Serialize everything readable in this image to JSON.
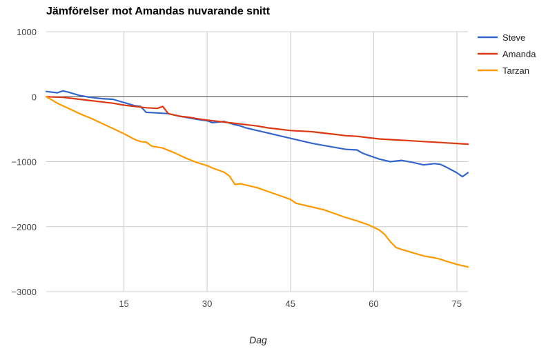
{
  "chart_data": {
    "type": "line",
    "title": "Jämförelser mot Amandas nuvarande snitt",
    "xlabel": "Dag",
    "ylabel": "",
    "xlim": [
      1,
      77
    ],
    "ylim": [
      -3000,
      1000
    ],
    "xticks": [
      15,
      30,
      45,
      60,
      75
    ],
    "yticks": [
      1000,
      0,
      -1000,
      -2000,
      -3000
    ],
    "ytick_labels": [
      "1000",
      "0",
      "−1000",
      "−2000",
      "−3000"
    ],
    "grid": true,
    "legend_position": "right",
    "series": [
      {
        "name": "Steve",
        "color": "#3366cc",
        "x": [
          1,
          3,
          4,
          5,
          7,
          9,
          11,
          13,
          15,
          17,
          18,
          19,
          21,
          23,
          25,
          27,
          29,
          30,
          31,
          33,
          35,
          36,
          37,
          39,
          41,
          43,
          45,
          47,
          49,
          51,
          53,
          55,
          57,
          58,
          59,
          61,
          63,
          64,
          65,
          67,
          69,
          71,
          72,
          73,
          75,
          76,
          77
        ],
        "values": [
          80,
          60,
          90,
          70,
          20,
          -10,
          -30,
          -40,
          -90,
          -140,
          -150,
          -240,
          -250,
          -260,
          -300,
          -330,
          -360,
          -370,
          -400,
          -380,
          -430,
          -450,
          -480,
          -520,
          -560,
          -600,
          -640,
          -680,
          -720,
          -750,
          -780,
          -810,
          -820,
          -870,
          -900,
          -960,
          -1000,
          -990,
          -980,
          -1010,
          -1050,
          -1030,
          -1040,
          -1080,
          -1170,
          -1230,
          -1170
        ]
      },
      {
        "name": "Amanda",
        "color": "#dc3912",
        "x": [
          1,
          4,
          5,
          7,
          9,
          11,
          13,
          15,
          17,
          19,
          21,
          22,
          23,
          25,
          27,
          29,
          30,
          33,
          35,
          37,
          39,
          41,
          43,
          45,
          47,
          49,
          51,
          53,
          55,
          57,
          59,
          61,
          63,
          65,
          67,
          69,
          71,
          73,
          75,
          77
        ],
        "values": [
          0,
          -10,
          -20,
          -40,
          -60,
          -80,
          -100,
          -130,
          -150,
          -170,
          -180,
          -150,
          -260,
          -300,
          -320,
          -350,
          -360,
          -390,
          -410,
          -430,
          -450,
          -480,
          -500,
          -520,
          -530,
          -540,
          -560,
          -580,
          -600,
          -610,
          -630,
          -650,
          -660,
          -670,
          -680,
          -690,
          -700,
          -710,
          -720,
          -730
        ]
      },
      {
        "name": "Tarzan",
        "color": "#ff9900",
        "x": [
          1,
          3,
          5,
          7,
          9,
          11,
          13,
          15,
          17,
          18,
          19,
          20,
          22,
          24,
          26,
          28,
          30,
          31,
          33,
          34,
          35,
          36,
          37,
          39,
          41,
          43,
          45,
          46,
          47,
          49,
          51,
          53,
          55,
          57,
          59,
          61,
          62,
          63,
          64,
          65,
          67,
          69,
          71,
          72,
          73,
          75,
          77
        ],
        "values": [
          0,
          -100,
          -180,
          -260,
          -330,
          -410,
          -490,
          -570,
          -660,
          -690,
          -700,
          -760,
          -790,
          -860,
          -940,
          -1010,
          -1060,
          -1100,
          -1160,
          -1220,
          -1350,
          -1340,
          -1360,
          -1400,
          -1460,
          -1520,
          -1580,
          -1640,
          -1660,
          -1700,
          -1740,
          -1800,
          -1860,
          -1910,
          -1970,
          -2050,
          -2120,
          -2230,
          -2320,
          -2350,
          -2400,
          -2450,
          -2480,
          -2500,
          -2530,
          -2580,
          -2620
        ]
      }
    ]
  }
}
